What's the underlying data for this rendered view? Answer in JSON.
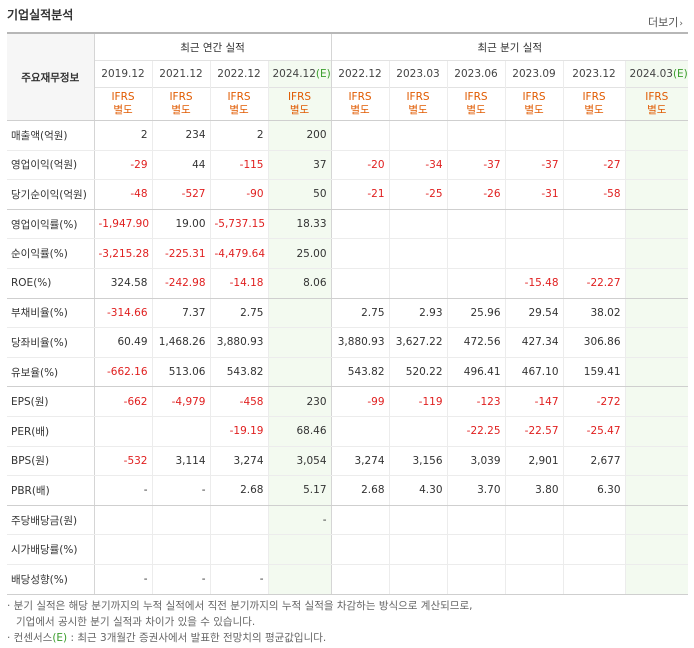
{
  "title": "기업실적분석",
  "more_label": "더보기",
  "header": {
    "corner": "주요재무정보",
    "annual_group": "최근 연간 실적",
    "quarter_group": "최근 분기 실적",
    "periods": [
      {
        "label": "2019.12",
        "est": false
      },
      {
        "label": "2021.12",
        "est": false
      },
      {
        "label": "2022.12",
        "est": false
      },
      {
        "label": "2024.12",
        "est": true
      },
      {
        "label": "2022.12",
        "est": false
      },
      {
        "label": "2023.03",
        "est": false
      },
      {
        "label": "2023.06",
        "est": false
      },
      {
        "label": "2023.09",
        "est": false
      },
      {
        "label": "2023.12",
        "est": false
      },
      {
        "label": "2024.03",
        "est": true
      }
    ],
    "est_mark": "(E)",
    "basis_line1": "IFRS",
    "basis_line2": "별도"
  },
  "rows": [
    {
      "label": "매출액(억원)",
      "values": [
        "2",
        "234",
        "2",
        "200",
        "",
        "",
        "",
        "",
        "",
        ""
      ]
    },
    {
      "label": "영업이익(억원)",
      "values": [
        "-29",
        "44",
        "-115",
        "37",
        "-20",
        "-34",
        "-37",
        "-37",
        "-27",
        ""
      ]
    },
    {
      "label": "당기순이익(억원)",
      "values": [
        "-48",
        "-527",
        "-90",
        "50",
        "-21",
        "-25",
        "-26",
        "-31",
        "-58",
        ""
      ]
    },
    {
      "label": "영업이익률(%)",
      "values": [
        "-1,947.90",
        "19.00",
        "-5,737.15",
        "18.33",
        "",
        "",
        "",
        "",
        "",
        ""
      ]
    },
    {
      "label": "순이익률(%)",
      "values": [
        "-3,215.28",
        "-225.31",
        "-4,479.64",
        "25.00",
        "",
        "",
        "",
        "",
        "",
        ""
      ]
    },
    {
      "label": "ROE(%)",
      "values": [
        "324.58",
        "-242.98",
        "-14.18",
        "8.06",
        "",
        "",
        "",
        "-15.48",
        "-22.27",
        ""
      ]
    },
    {
      "label": "부채비율(%)",
      "values": [
        "-314.66",
        "7.37",
        "2.75",
        "",
        "2.75",
        "2.93",
        "25.96",
        "29.54",
        "38.02",
        ""
      ]
    },
    {
      "label": "당좌비율(%)",
      "values": [
        "60.49",
        "1,468.26",
        "3,880.93",
        "",
        "3,880.93",
        "3,627.22",
        "472.56",
        "427.34",
        "306.86",
        ""
      ]
    },
    {
      "label": "유보율(%)",
      "values": [
        "-662.16",
        "513.06",
        "543.82",
        "",
        "543.82",
        "520.22",
        "496.41",
        "467.10",
        "159.41",
        ""
      ]
    },
    {
      "label": "EPS(원)",
      "values": [
        "-662",
        "-4,979",
        "-458",
        "230",
        "-99",
        "-119",
        "-123",
        "-147",
        "-272",
        ""
      ]
    },
    {
      "label": "PER(배)",
      "values": [
        "",
        "",
        "-19.19",
        "68.46",
        "",
        "",
        "-22.25",
        "-22.57",
        "-25.47",
        ""
      ]
    },
    {
      "label": "BPS(원)",
      "values": [
        "-532",
        "3,114",
        "3,274",
        "3,054",
        "3,274",
        "3,156",
        "3,039",
        "2,901",
        "2,677",
        ""
      ]
    },
    {
      "label": "PBR(배)",
      "values": [
        "-",
        "-",
        "2.68",
        "5.17",
        "2.68",
        "4.30",
        "3.70",
        "3.80",
        "6.30",
        ""
      ]
    },
    {
      "label": "주당배당금(원)",
      "values": [
        "",
        "",
        "",
        "-",
        "",
        "",
        "",
        "",
        "",
        ""
      ]
    },
    {
      "label": "시가배당률(%)",
      "values": [
        "",
        "",
        "",
        "",
        "",
        "",
        "",
        "",
        "",
        ""
      ]
    },
    {
      "label": "배당성향(%)",
      "values": [
        "-",
        "-",
        "-",
        "",
        "",
        "",
        "",
        "",
        "",
        ""
      ]
    }
  ],
  "notes": {
    "line1": "· 분기 실적은 해당 분기까지의 누적 실적에서 직전 분기까지의 누적 실적을 차감하는 방식으로 계산되므로,",
    "line2": "기업에서 공시한 분기 실적과 차이가 있을 수 있습니다.",
    "line3_prefix": "· 컨센서스",
    "line3_mark": "(E)",
    "line3_suffix": " : 최근 3개월간 증권사에서 발표한 전망치의 평균값입니다."
  },
  "colors": {
    "negative": "#e02020",
    "basis": "#e05a00",
    "estimate_bg": "#f3faf0",
    "estimate_mark": "#3a9d2c"
  }
}
